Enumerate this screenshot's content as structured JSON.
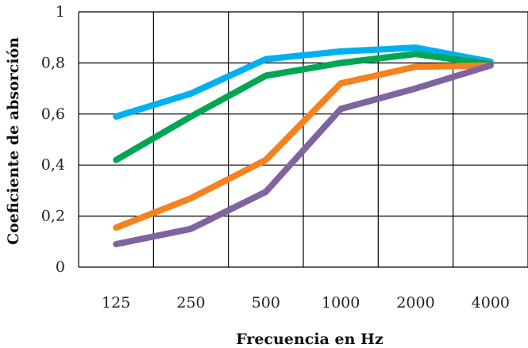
{
  "chart_data": {
    "type": "line",
    "xlabel": "Frecuencia en Hz",
    "ylabel": "Coeficiente de absorción",
    "categories": [
      "125",
      "250",
      "500",
      "1000",
      "2000",
      "4000"
    ],
    "ylim": [
      0,
      1
    ],
    "yticks": [
      "0",
      "0,2",
      "0,4",
      "0,6",
      "0,8",
      "1"
    ],
    "grid": true,
    "legend": "none",
    "series": [
      {
        "color": "#00B0F0",
        "values": [
          0.59,
          0.68,
          0.815,
          0.845,
          0.86,
          0.805
        ]
      },
      {
        "color": "#00A651",
        "values": [
          0.42,
          0.59,
          0.75,
          0.8,
          0.835,
          0.795
        ]
      },
      {
        "color": "#F58220",
        "values": [
          0.155,
          0.27,
          0.42,
          0.72,
          0.785,
          0.79
        ]
      },
      {
        "color": "#8064A2",
        "values": [
          0.09,
          0.15,
          0.295,
          0.62,
          0.7,
          0.79
        ]
      }
    ]
  }
}
